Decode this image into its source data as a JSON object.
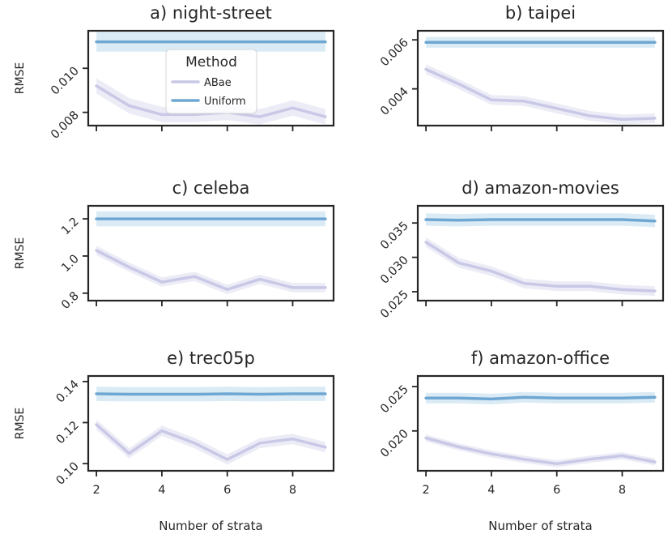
{
  "chart_data": [
    {
      "type": "line",
      "title": "a) night-street",
      "ylabel": "RMSE",
      "xlabel": "",
      "xlim": [
        1.75,
        9.25
      ],
      "ylim": [
        0.0074,
        0.0117
      ],
      "x": [
        2,
        3,
        4,
        5,
        6,
        7,
        8,
        9
      ],
      "xticks": [
        2,
        4,
        6,
        8
      ],
      "yticks": [
        0.008,
        0.01
      ],
      "ytick_labels": [
        "0.008",
        "0.010"
      ],
      "series": [
        {
          "name": "ABae",
          "values": [
            0.0092,
            0.0083,
            0.0079,
            0.0079,
            0.008,
            0.0078,
            0.0082,
            0.0078
          ],
          "band": 0.00035
        },
        {
          "name": "Uniform",
          "values": [
            0.0112,
            0.0112,
            0.0112,
            0.0112,
            0.0112,
            0.0112,
            0.0112,
            0.0112
          ],
          "band": 0.00045
        }
      ],
      "legend": {
        "title": "Method",
        "placement": "upper-center",
        "entries": [
          "ABae",
          "Uniform"
        ]
      }
    },
    {
      "type": "line",
      "title": "b) taipei",
      "ylabel": "",
      "xlabel": "",
      "xlim": [
        1.75,
        9.25
      ],
      "ylim": [
        0.0025,
        0.00637
      ],
      "x": [
        2,
        3,
        4,
        5,
        6,
        7,
        8,
        9
      ],
      "xticks": [
        2,
        4,
        6,
        8
      ],
      "yticks": [
        0.004,
        0.006
      ],
      "ytick_labels": [
        "0.004",
        "0.006"
      ],
      "series": [
        {
          "name": "ABae",
          "values": [
            0.0048,
            0.0042,
            0.00355,
            0.0035,
            0.0032,
            0.0029,
            0.00275,
            0.0028
          ],
          "band": 0.0002
        },
        {
          "name": "Uniform",
          "values": [
            0.0059,
            0.0059,
            0.0059,
            0.0059,
            0.0059,
            0.0059,
            0.0059,
            0.0059
          ],
          "band": 0.00022
        }
      ]
    },
    {
      "type": "line",
      "title": "c) celeba",
      "ylabel": "RMSE",
      "xlabel": "",
      "xlim": [
        1.75,
        9.25
      ],
      "ylim": [
        0.76,
        1.27
      ],
      "x": [
        2,
        3,
        4,
        5,
        6,
        7,
        8,
        9
      ],
      "xticks": [
        2,
        4,
        6,
        8
      ],
      "yticks": [
        0.8,
        1.0,
        1.2
      ],
      "ytick_labels": [
        "0.8",
        "1.0",
        "1.2"
      ],
      "series": [
        {
          "name": "ABae",
          "values": [
            1.03,
            0.94,
            0.86,
            0.89,
            0.82,
            0.875,
            0.83,
            0.83
          ],
          "band": 0.025
        },
        {
          "name": "Uniform",
          "values": [
            1.2,
            1.2,
            1.2,
            1.2,
            1.2,
            1.2,
            1.2,
            1.2
          ],
          "band": 0.04
        }
      ]
    },
    {
      "type": "line",
      "title": "d) amazon-movies",
      "ylabel": "",
      "xlabel": "",
      "xlim": [
        1.75,
        9.25
      ],
      "ylim": [
        0.0237,
        0.0375
      ],
      "x": [
        2,
        3,
        4,
        5,
        6,
        7,
        8,
        9
      ],
      "xticks": [
        2,
        4,
        6,
        8
      ],
      "yticks": [
        0.025,
        0.03,
        0.035
      ],
      "ytick_labels": [
        "0.025",
        "0.030",
        "0.035"
      ],
      "series": [
        {
          "name": "ABae",
          "values": [
            0.0322,
            0.0292,
            0.028,
            0.0262,
            0.0258,
            0.0258,
            0.0253,
            0.0251
          ],
          "band": 0.0007
        },
        {
          "name": "Uniform",
          "values": [
            0.0355,
            0.0354,
            0.0355,
            0.0355,
            0.0355,
            0.0355,
            0.0355,
            0.0353
          ],
          "band": 0.0009
        }
      ]
    },
    {
      "type": "line",
      "title": "e) trec05p",
      "ylabel": "RMSE",
      "xlabel": "Number of strata",
      "xlim": [
        1.75,
        9.25
      ],
      "ylim": [
        0.0965,
        0.1427
      ],
      "x": [
        2,
        3,
        4,
        5,
        6,
        7,
        8,
        9
      ],
      "xticks": [
        2,
        4,
        6,
        8
      ],
      "yticks": [
        0.1,
        0.12,
        0.14
      ],
      "ytick_labels": [
        "0.10",
        "0.12",
        "0.14"
      ],
      "series": [
        {
          "name": "ABae",
          "values": [
            0.119,
            0.105,
            0.116,
            0.11,
            0.102,
            0.11,
            0.112,
            0.108
          ],
          "band": 0.0025
        },
        {
          "name": "Uniform",
          "values": [
            0.134,
            0.1338,
            0.1338,
            0.1338,
            0.134,
            0.1338,
            0.134,
            0.134
          ],
          "band": 0.0035
        }
      ]
    },
    {
      "type": "line",
      "title": "f) amazon-office",
      "ylabel": "",
      "xlabel": "Number of strata",
      "xlim": [
        1.75,
        9.25
      ],
      "ylim": [
        0.0155,
        0.0262
      ],
      "x": [
        2,
        3,
        4,
        5,
        6,
        7,
        8,
        9
      ],
      "xticks": [
        2,
        4,
        6,
        8
      ],
      "yticks": [
        0.02,
        0.025
      ],
      "ytick_labels": [
        "0.020",
        "0.025"
      ],
      "series": [
        {
          "name": "ABae",
          "values": [
            0.0192,
            0.0182,
            0.0174,
            0.0168,
            0.0163,
            0.0168,
            0.0172,
            0.0165
          ],
          "band": 0.0004
        },
        {
          "name": "Uniform",
          "values": [
            0.0237,
            0.0237,
            0.0236,
            0.0238,
            0.0237,
            0.0237,
            0.0237,
            0.0238
          ],
          "band": 0.0006
        }
      ]
    }
  ],
  "colors": {
    "ABae": "#c9c8e6",
    "ABae_band": "#e6e5f4",
    "Uniform": "#6fa7d3",
    "Uniform_band": "#cde4f2",
    "axis": "#262626"
  }
}
